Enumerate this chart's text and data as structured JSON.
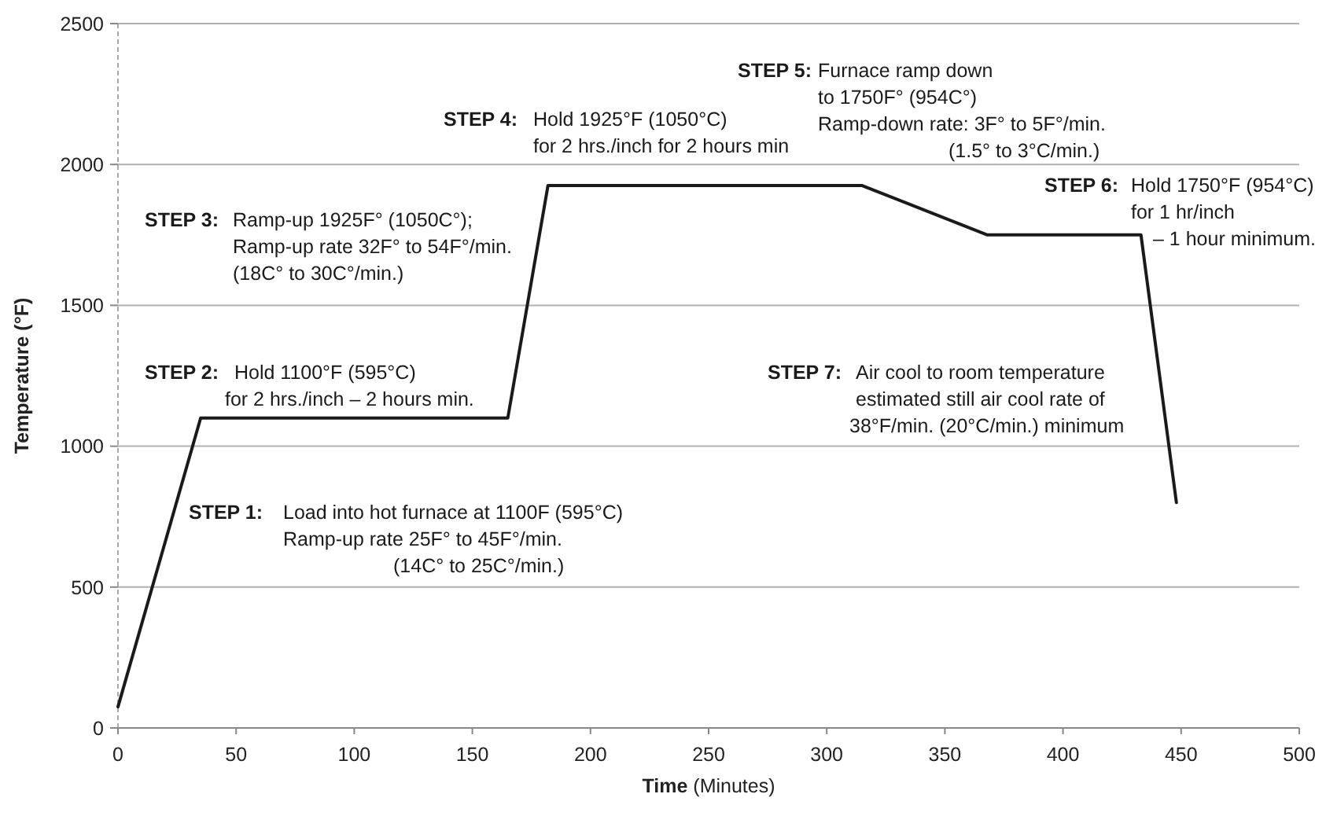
{
  "chart_data": {
    "type": "line",
    "xlabel": "Time (Minutes)",
    "ylabel": "Temperature (°F)",
    "x": [
      0,
      35,
      165,
      182,
      315,
      368,
      433,
      448
    ],
    "series": [
      {
        "color": "#1a1a1a",
        "values": [
          75,
          1100,
          1100,
          1925,
          1925,
          1750,
          1750,
          800
        ]
      }
    ],
    "xlim": [
      0,
      500
    ],
    "xticks": [
      0,
      50,
      100,
      150,
      200,
      250,
      300,
      350,
      400,
      450,
      500
    ],
    "ylim": [
      0,
      2500
    ],
    "yticks": [
      0,
      500,
      1000,
      1500,
      2000,
      2500
    ],
    "grid": "y",
    "marker": "none",
    "line_style": "solid",
    "annotations": [
      "STEP 1:\nLoad into hot furnace at 1100F (595°C)\nRamp-up rate 25F° to 45F°/min.\n(14C° to 25C°/min.)",
      "STEP 2:\nHold 1100°F (595°C)\nfor 2 hrs./inch – 2 hours min.",
      "STEP 3:\nRamp-up 1925F° (1050C°);\nRamp-up rate 32F° to 54F°/min.\n(18C° to 30C°/min.)",
      "STEP 4:\nHold 1925°F (1050°C)\nfor 2 hrs./inch for 2 hours min",
      "STEP 5:\nFurnace ramp down\nto 1750F° (954C°)\nRamp-down rate: 3F° to 5F°/min.\n(1.5° to 3°C/min.)",
      "STEP 6:\nHold 1750°F (954°C)\nfor 1 hr/inch\n– 1 hour minimum.",
      "STEP 7:\nAir cool to room temperature\nestimated still air cool rate of\n38°F/min. (20°C/min.) minimum"
    ]
  }
}
